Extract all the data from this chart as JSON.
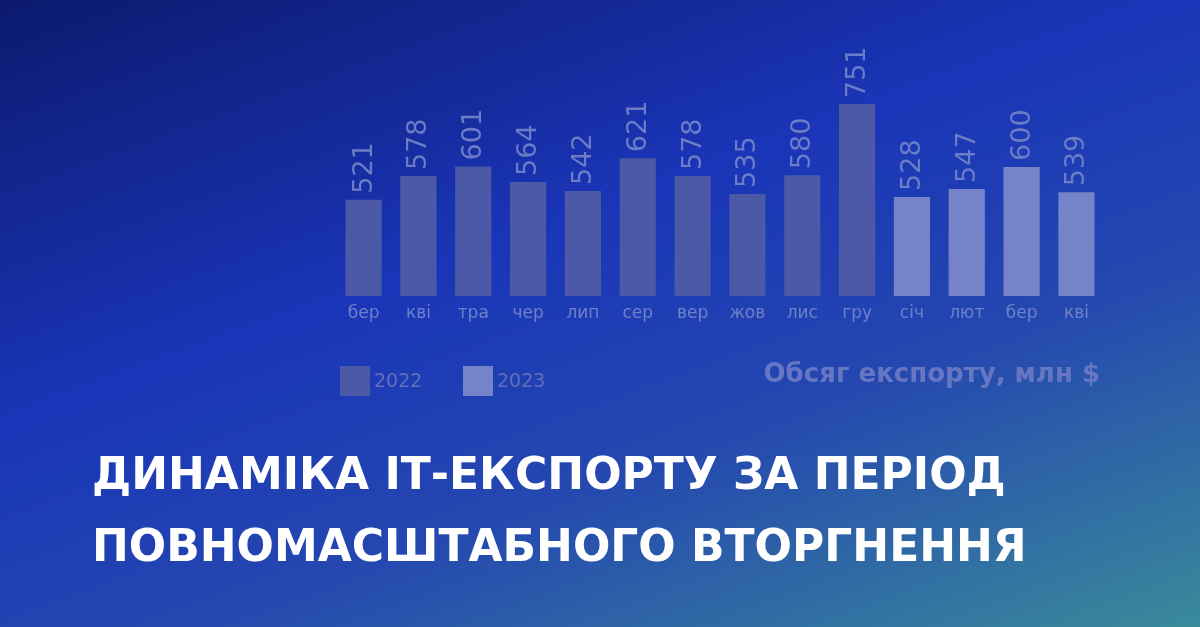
{
  "chart_data": {
    "type": "bar",
    "title": "ДИНАМІКА ІТ-ЕКСПОРТУ ЗА ПЕРІОД\nПОВНОМАСШТАБНОГО ВТОРГНЕННЯ",
    "categories": [
      "бер",
      "кві",
      "тра",
      "чер",
      "лип",
      "сер",
      "вер",
      "жов",
      "лис",
      "гру",
      "січ",
      "лют",
      "бер",
      "кві"
    ],
    "series": [
      {
        "name": "2022",
        "color": "#4b59a6",
        "values": [
          521,
          578,
          601,
          564,
          542,
          621,
          578,
          535,
          580,
          751,
          null,
          null,
          null,
          null
        ]
      },
      {
        "name": "2023",
        "color": "#7584c9",
        "values": [
          null,
          null,
          null,
          null,
          null,
          null,
          null,
          null,
          null,
          null,
          528,
          547,
          600,
          539
        ]
      }
    ],
    "ylim": [
      290,
      751
    ],
    "data_labels": true,
    "legend": "bottom left",
    "grid": false,
    "annotations": [
      "Обсяг експорту, млн $"
    ]
  }
}
